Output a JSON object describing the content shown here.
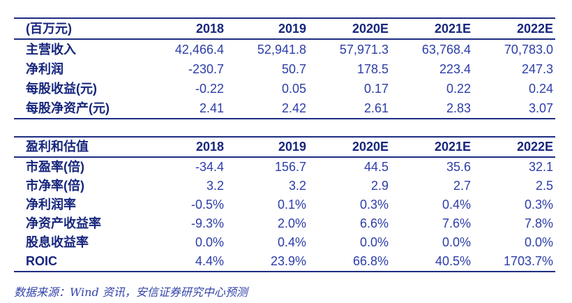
{
  "colors": {
    "border": "#1d2d82",
    "label_text": "#17267c",
    "number_text": "#2c3da9",
    "footer_text": "#3344a8"
  },
  "summary_table": {
    "unit_header": "(百万元)",
    "columns": [
      "2018",
      "2019",
      "2020E",
      "2021E",
      "2022E"
    ],
    "rows": [
      {
        "label": "主营收入",
        "values": [
          "42,466.4",
          "52,941.8",
          "57,971.3",
          "63,768.4",
          "70,783.0"
        ]
      },
      {
        "label": "净利润",
        "values": [
          "-230.7",
          "50.7",
          "178.5",
          "223.4",
          "247.3"
        ]
      },
      {
        "label": "每股收益(元)",
        "values": [
          "-0.22",
          "0.05",
          "0.17",
          "0.22",
          "0.24"
        ]
      },
      {
        "label": "每股净资产(元)",
        "values": [
          "2.41",
          "2.42",
          "2.61",
          "2.83",
          "3.07"
        ]
      }
    ]
  },
  "valuation_table": {
    "unit_header": "盈利和估值",
    "columns": [
      "2018",
      "2019",
      "2020E",
      "2021E",
      "2022E"
    ],
    "rows": [
      {
        "label": "市盈率(倍)",
        "values": [
          "-34.4",
          "156.7",
          "44.5",
          "35.6",
          "32.1"
        ]
      },
      {
        "label": "市净率(倍)",
        "values": [
          "3.2",
          "3.2",
          "2.9",
          "2.7",
          "2.5"
        ]
      },
      {
        "label": "净利润率",
        "values": [
          "-0.5%",
          "0.1%",
          "0.3%",
          "0.4%",
          "0.3%"
        ]
      },
      {
        "label": "净资产收益率",
        "values": [
          "-9.3%",
          "2.0%",
          "6.6%",
          "7.6%",
          "7.8%"
        ]
      },
      {
        "label": "股息收益率",
        "values": [
          "0.0%",
          "0.4%",
          "0.0%",
          "0.0%",
          "0.0%"
        ]
      },
      {
        "label": "ROIC",
        "values": [
          "4.4%",
          "23.9%",
          "66.8%",
          "40.5%",
          "1703.7%"
        ]
      }
    ]
  },
  "footer": {
    "source_note": "数据来源：Wind 资讯，安信证券研究中心预测"
  }
}
